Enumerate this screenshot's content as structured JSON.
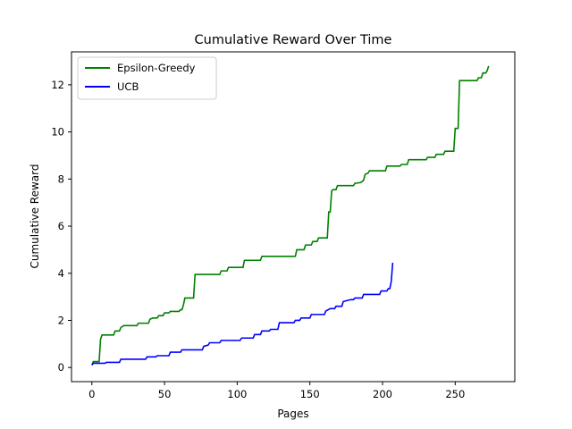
{
  "chart_data": {
    "type": "line",
    "title": "Cumulative Reward Over Time",
    "xlabel": "Pages",
    "ylabel": "Cumulative Reward",
    "xlim": [
      -14,
      291
    ],
    "ylim": [
      -0.6,
      13.4
    ],
    "xticks": [
      0,
      50,
      100,
      150,
      200,
      250
    ],
    "yticks": [
      0,
      2,
      4,
      6,
      8,
      10,
      12
    ],
    "grid": false,
    "legend_position": "top-left",
    "series": [
      {
        "name": "Epsilon-Greedy",
        "color": "#008000",
        "step": true,
        "points": [
          [
            0,
            0.1
          ],
          [
            1,
            0.25
          ],
          [
            5,
            0.25
          ],
          [
            6,
            1.2
          ],
          [
            7,
            1.38
          ],
          [
            15,
            1.38
          ],
          [
            16,
            1.55
          ],
          [
            19,
            1.55
          ],
          [
            20,
            1.7
          ],
          [
            22,
            1.78
          ],
          [
            31,
            1.78
          ],
          [
            32,
            1.88
          ],
          [
            39,
            1.88
          ],
          [
            40,
            2.05
          ],
          [
            42,
            2.1
          ],
          [
            45,
            2.1
          ],
          [
            46,
            2.2
          ],
          [
            49,
            2.2
          ],
          [
            50,
            2.32
          ],
          [
            53,
            2.32
          ],
          [
            54,
            2.38
          ],
          [
            60,
            2.38
          ],
          [
            61,
            2.45
          ],
          [
            62,
            2.45
          ],
          [
            63,
            2.65
          ],
          [
            64,
            2.95
          ],
          [
            70,
            2.95
          ],
          [
            71,
            3.95
          ],
          [
            88,
            3.95
          ],
          [
            89,
            4.1
          ],
          [
            93,
            4.1
          ],
          [
            94,
            4.25
          ],
          [
            104,
            4.25
          ],
          [
            105,
            4.55
          ],
          [
            116,
            4.55
          ],
          [
            117,
            4.72
          ],
          [
            140,
            4.72
          ],
          [
            141,
            5.0
          ],
          [
            146,
            5.0
          ],
          [
            147,
            5.2
          ],
          [
            151,
            5.2
          ],
          [
            152,
            5.35
          ],
          [
            155,
            5.35
          ],
          [
            156,
            5.5
          ],
          [
            162,
            5.5
          ],
          [
            163,
            6.6
          ],
          [
            164,
            6.6
          ],
          [
            165,
            7.5
          ],
          [
            166,
            7.55
          ],
          [
            168,
            7.55
          ],
          [
            169,
            7.72
          ],
          [
            180,
            7.72
          ],
          [
            181,
            7.82
          ],
          [
            185,
            7.85
          ],
          [
            187,
            7.95
          ],
          [
            188,
            8.2
          ],
          [
            190,
            8.25
          ],
          [
            191,
            8.35
          ],
          [
            202,
            8.35
          ],
          [
            203,
            8.55
          ],
          [
            212,
            8.55
          ],
          [
            213,
            8.62
          ],
          [
            217,
            8.62
          ],
          [
            218,
            8.82
          ],
          [
            230,
            8.82
          ],
          [
            231,
            8.92
          ],
          [
            236,
            8.92
          ],
          [
            237,
            9.05
          ],
          [
            242,
            9.05
          ],
          [
            243,
            9.18
          ],
          [
            249,
            9.18
          ],
          [
            250,
            10.15
          ],
          [
            252,
            10.15
          ],
          [
            253,
            12.18
          ],
          [
            265,
            12.18
          ],
          [
            266,
            12.3
          ],
          [
            268,
            12.3
          ],
          [
            269,
            12.5
          ],
          [
            271,
            12.5
          ],
          [
            272,
            12.6
          ],
          [
            273,
            12.8
          ]
        ]
      },
      {
        "name": "UCB",
        "color": "#0000ff",
        "step": true,
        "points": [
          [
            0,
            0.1
          ],
          [
            1,
            0.18
          ],
          [
            9,
            0.18
          ],
          [
            10,
            0.22
          ],
          [
            19,
            0.22
          ],
          [
            20,
            0.35
          ],
          [
            37,
            0.35
          ],
          [
            38,
            0.45
          ],
          [
            44,
            0.45
          ],
          [
            45,
            0.5
          ],
          [
            53,
            0.5
          ],
          [
            54,
            0.65
          ],
          [
            61,
            0.65
          ],
          [
            62,
            0.75
          ],
          [
            76,
            0.75
          ],
          [
            77,
            0.9
          ],
          [
            80,
            0.95
          ],
          [
            81,
            1.05
          ],
          [
            88,
            1.05
          ],
          [
            89,
            1.15
          ],
          [
            102,
            1.15
          ],
          [
            103,
            1.25
          ],
          [
            111,
            1.25
          ],
          [
            112,
            1.4
          ],
          [
            116,
            1.4
          ],
          [
            117,
            1.55
          ],
          [
            122,
            1.55
          ],
          [
            123,
            1.62
          ],
          [
            128,
            1.62
          ],
          [
            129,
            1.9
          ],
          [
            139,
            1.9
          ],
          [
            140,
            2.0
          ],
          [
            143,
            2.0
          ],
          [
            144,
            2.1
          ],
          [
            150,
            2.1
          ],
          [
            151,
            2.25
          ],
          [
            160,
            2.25
          ],
          [
            161,
            2.4
          ],
          [
            164,
            2.5
          ],
          [
            167,
            2.5
          ],
          [
            168,
            2.6
          ],
          [
            172,
            2.6
          ],
          [
            173,
            2.8
          ],
          [
            178,
            2.88
          ],
          [
            180,
            2.88
          ],
          [
            181,
            2.95
          ],
          [
            186,
            2.95
          ],
          [
            187,
            3.1
          ],
          [
            198,
            3.1
          ],
          [
            199,
            3.25
          ],
          [
            203,
            3.25
          ],
          [
            204,
            3.35
          ],
          [
            205,
            3.35
          ],
          [
            206,
            3.65
          ],
          [
            207,
            4.45
          ]
        ]
      }
    ]
  }
}
